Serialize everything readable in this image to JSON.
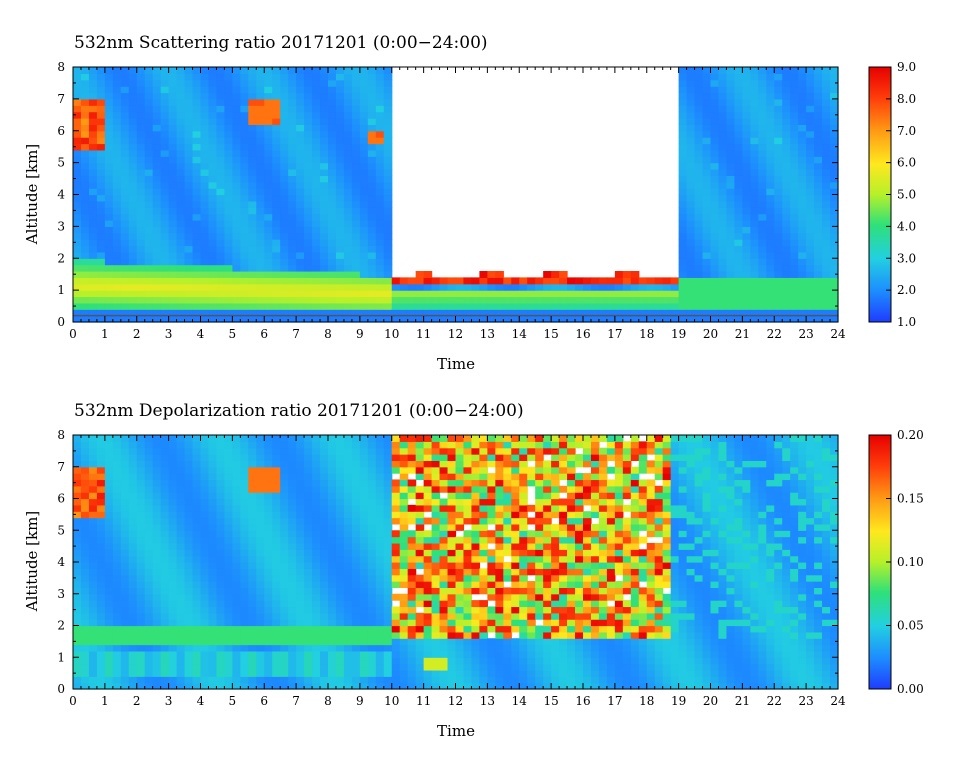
{
  "chart_data": [
    {
      "type": "heatmap",
      "title": "532nm Scattering ratio  20171201 (0:00−24:00)",
      "xlabel": "Time",
      "ylabel": "Altitude [km]",
      "xlim": [
        0,
        24
      ],
      "ylim": [
        0,
        8
      ],
      "x_ticks": [
        "0",
        "1",
        "2",
        "3",
        "4",
        "5",
        "6",
        "7",
        "8",
        "9",
        "10",
        "11",
        "12",
        "13",
        "14",
        "15",
        "16",
        "17",
        "18",
        "19",
        "20",
        "21",
        "22",
        "23",
        "24"
      ],
      "y_ticks": [
        "0",
        "1",
        "2",
        "3",
        "4",
        "5",
        "6",
        "7",
        "8"
      ],
      "colorbar": {
        "min": 1.0,
        "max": 9.0,
        "ticks": [
          "1.0",
          "2.0",
          "3.0",
          "4.0",
          "5.0",
          "6.0",
          "7.0",
          "8.0",
          "9.0"
        ]
      },
      "colormap": [
        "#1e3cff",
        "#1d8cff",
        "#22d0e0",
        "#2fe07a",
        "#b6f02a",
        "#ffe81e",
        "#ff9a14",
        "#ff3c0a",
        "#e60000"
      ],
      "features": [
        {
          "kind": "boundary_layer",
          "time": [
            0,
            10
          ],
          "altitude_km": [
            0.3,
            1.9
          ],
          "value": 4.5
        },
        {
          "kind": "low_cloud_top",
          "time": [
            10,
            19
          ],
          "altitude_km": [
            1.2,
            1.7
          ],
          "value": 9.0
        },
        {
          "kind": "cloud_blocked_gap",
          "time": [
            10,
            18.8
          ],
          "altitude_km": [
            1.7,
            8.0
          ]
        },
        {
          "kind": "cirrus",
          "time": [
            0,
            1
          ],
          "altitude_km": [
            5.3,
            7.1
          ],
          "value": 7.5
        },
        {
          "kind": "cirrus",
          "time": [
            5.6,
            6.4
          ],
          "altitude_km": [
            6.2,
            7.0
          ],
          "value": 7.5
        },
        {
          "kind": "cirrus",
          "time": [
            9.3,
            9.8
          ],
          "altitude_km": [
            5.5,
            6.0
          ],
          "value": 7.5
        }
      ]
    },
    {
      "type": "heatmap",
      "title": "532nm Depolarization ratio  20171201 (0:00−24:00)",
      "xlabel": "Time",
      "ylabel": "Altitude [km]",
      "xlim": [
        0,
        24
      ],
      "ylim": [
        0,
        8
      ],
      "x_ticks": [
        "0",
        "1",
        "2",
        "3",
        "4",
        "5",
        "6",
        "7",
        "8",
        "9",
        "10",
        "11",
        "12",
        "13",
        "14",
        "15",
        "16",
        "17",
        "18",
        "19",
        "20",
        "21",
        "22",
        "23",
        "24"
      ],
      "y_ticks": [
        "0",
        "1",
        "2",
        "3",
        "4",
        "5",
        "6",
        "7",
        "8"
      ],
      "colorbar": {
        "min": 0.0,
        "max": 0.2,
        "ticks": [
          "0.00",
          "0.05",
          "0.10",
          "0.15",
          "0.20"
        ]
      },
      "colormap": [
        "#1e3cff",
        "#1d8cff",
        "#22d0e0",
        "#2fe07a",
        "#b6f02a",
        "#ffe81e",
        "#ff9a14",
        "#ff3c0a",
        "#e60000"
      ],
      "features": [
        {
          "kind": "boundary_layer",
          "time": [
            0,
            10
          ],
          "altitude_km": [
            1.3,
            2.0
          ],
          "value": 0.07
        },
        {
          "kind": "noise_region",
          "time": [
            10,
            18.8
          ],
          "altitude_km": [
            1.5,
            8.0
          ],
          "value": 0.15
        },
        {
          "kind": "cirrus",
          "time": [
            0,
            1
          ],
          "altitude_km": [
            5.3,
            7.1
          ],
          "value": 0.17
        },
        {
          "kind": "cirrus",
          "time": [
            5.6,
            6.4
          ],
          "altitude_km": [
            6.2,
            7.0
          ],
          "value": 0.17
        },
        {
          "kind": "aerosol_blob",
          "time": [
            10.9,
            11.7
          ],
          "altitude_km": [
            0.6,
            1.1
          ],
          "value": 0.11
        }
      ]
    }
  ]
}
